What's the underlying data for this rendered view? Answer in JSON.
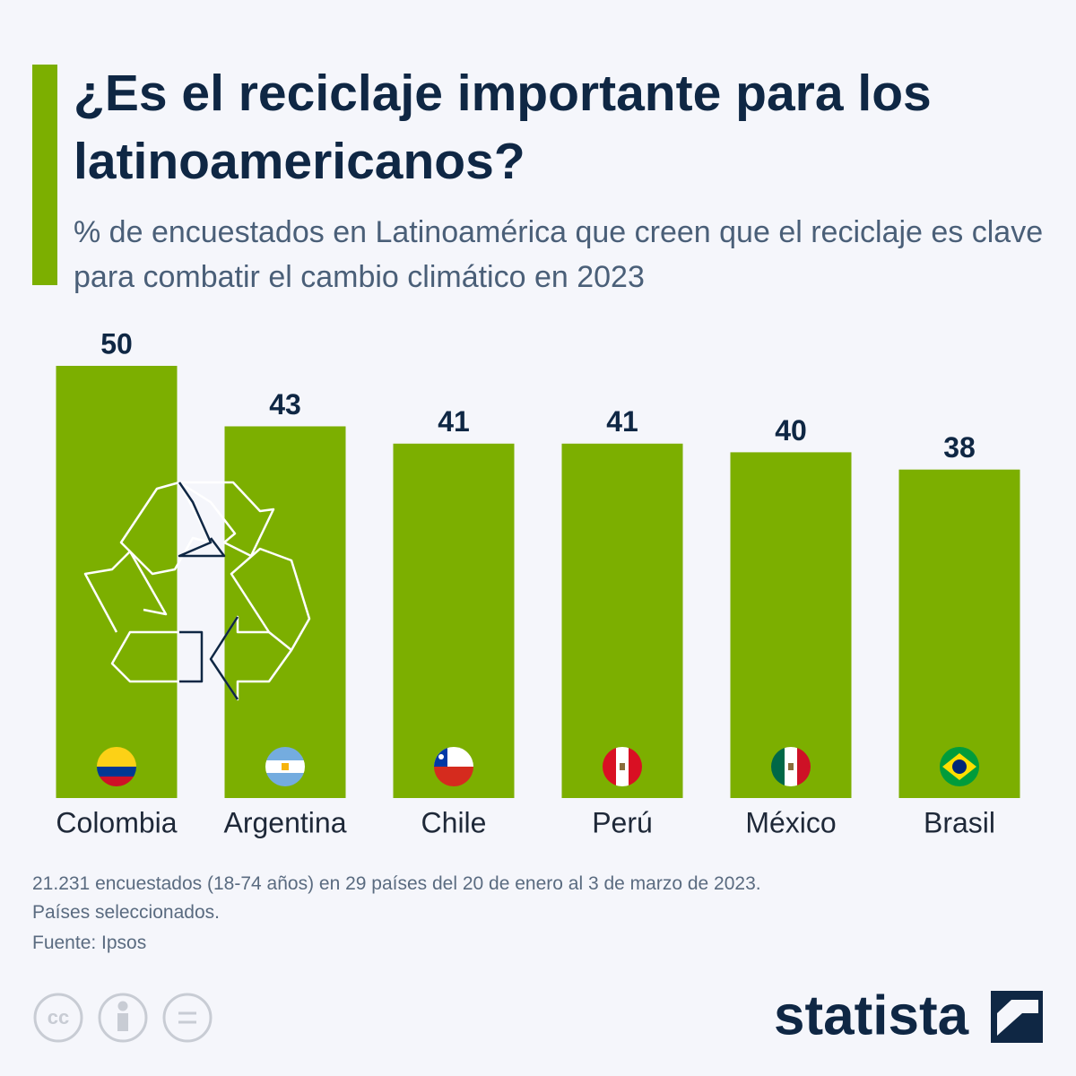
{
  "chart_data": {
    "type": "bar",
    "title": "¿Es el reciclaje importante para los latinoamericanos?",
    "subtitle": "% de encuestados en Latinoamérica que creen que el reciclaje es clave para combatir el cambio climático en 2023",
    "categories": [
      "Colombia",
      "Argentina",
      "Chile",
      "Perú",
      "México",
      "Brasil"
    ],
    "values": [
      50,
      43,
      41,
      41,
      40,
      38
    ],
    "color": "#7caf00",
    "ylim": [
      0,
      50
    ],
    "grid": false,
    "notes": [
      "21.231 encuestados (18-74 años) en 29 países del 20 de enero al 3 de marzo de 2023.",
      "Países seleccionados."
    ],
    "source": "Fuente: Ipsos"
  },
  "footer": {
    "license": "cc",
    "brand": "statista"
  }
}
